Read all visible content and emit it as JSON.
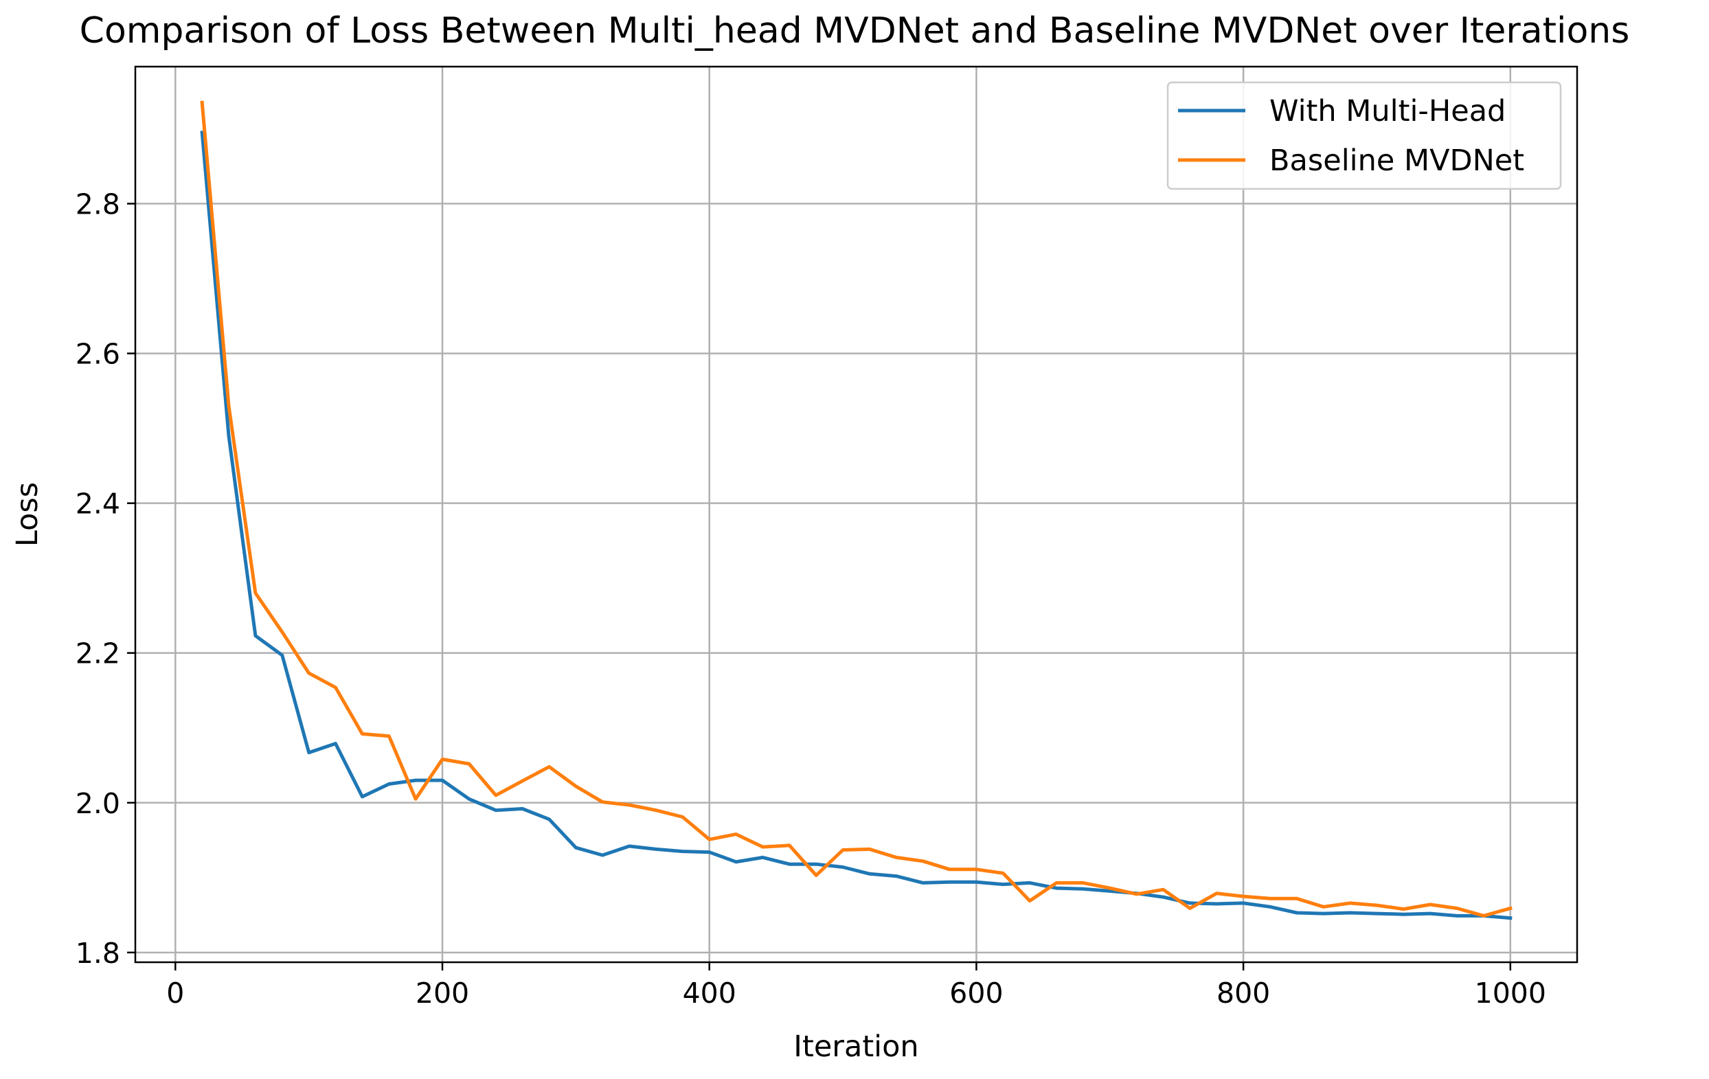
{
  "chart_data": {
    "type": "line",
    "title": "Comparison of Loss Between Multi_head MVDNet and Baseline MVDNet over Iterations",
    "xlabel": "Iteration",
    "ylabel": "Loss",
    "xlim": [
      -30,
      1050
    ],
    "ylim": [
      1.787,
      2.983
    ],
    "xticks": [
      0,
      200,
      400,
      600,
      800,
      1000
    ],
    "xtick_labels": [
      "0",
      "200",
      "400",
      "600",
      "800",
      "1000"
    ],
    "yticks": [
      1.8,
      2.0,
      2.2,
      2.4,
      2.6,
      2.8
    ],
    "ytick_labels": [
      "1.8",
      "2.0",
      "2.2",
      "2.4",
      "2.6",
      "2.8"
    ],
    "grid": true,
    "legend_position": "top-right",
    "x": [
      20,
      40,
      60,
      80,
      100,
      120,
      140,
      160,
      180,
      200,
      220,
      240,
      260,
      280,
      300,
      320,
      340,
      360,
      380,
      400,
      420,
      440,
      460,
      480,
      500,
      520,
      540,
      560,
      580,
      600,
      620,
      640,
      660,
      680,
      700,
      720,
      740,
      760,
      780,
      800,
      820,
      840,
      860,
      880,
      900,
      920,
      940,
      960,
      980,
      1000
    ],
    "series": [
      {
        "name": "With Multi-Head",
        "color": "#1f77b4",
        "values": [
          2.895,
          2.49,
          2.223,
          2.197,
          2.067,
          2.079,
          2.008,
          2.025,
          2.03,
          2.03,
          2.005,
          1.99,
          1.992,
          1.978,
          1.94,
          1.93,
          1.942,
          1.938,
          1.935,
          1.934,
          1.921,
          1.927,
          1.918,
          1.918,
          1.914,
          1.905,
          1.902,
          1.893,
          1.894,
          1.894,
          1.891,
          1.893,
          1.886,
          1.885,
          1.882,
          1.879,
          1.874,
          1.866,
          1.865,
          1.866,
          1.861,
          1.853,
          1.852,
          1.853,
          1.852,
          1.851,
          1.852,
          1.849,
          1.849,
          1.846
        ]
      },
      {
        "name": "Baseline MVDNet",
        "color": "#ff7f0e",
        "values": [
          2.935,
          2.53,
          2.28,
          2.228,
          2.173,
          2.154,
          2.092,
          2.089,
          2.005,
          2.058,
          2.052,
          2.01,
          2.029,
          2.048,
          2.022,
          2.001,
          1.997,
          1.99,
          1.981,
          1.951,
          1.958,
          1.941,
          1.943,
          1.903,
          1.937,
          1.938,
          1.927,
          1.922,
          1.911,
          1.911,
          1.906,
          1.869,
          1.893,
          1.893,
          1.886,
          1.878,
          1.884,
          1.859,
          1.879,
          1.875,
          1.872,
          1.872,
          1.861,
          1.866,
          1.863,
          1.858,
          1.864,
          1.859,
          1.849,
          1.859
        ]
      }
    ]
  }
}
